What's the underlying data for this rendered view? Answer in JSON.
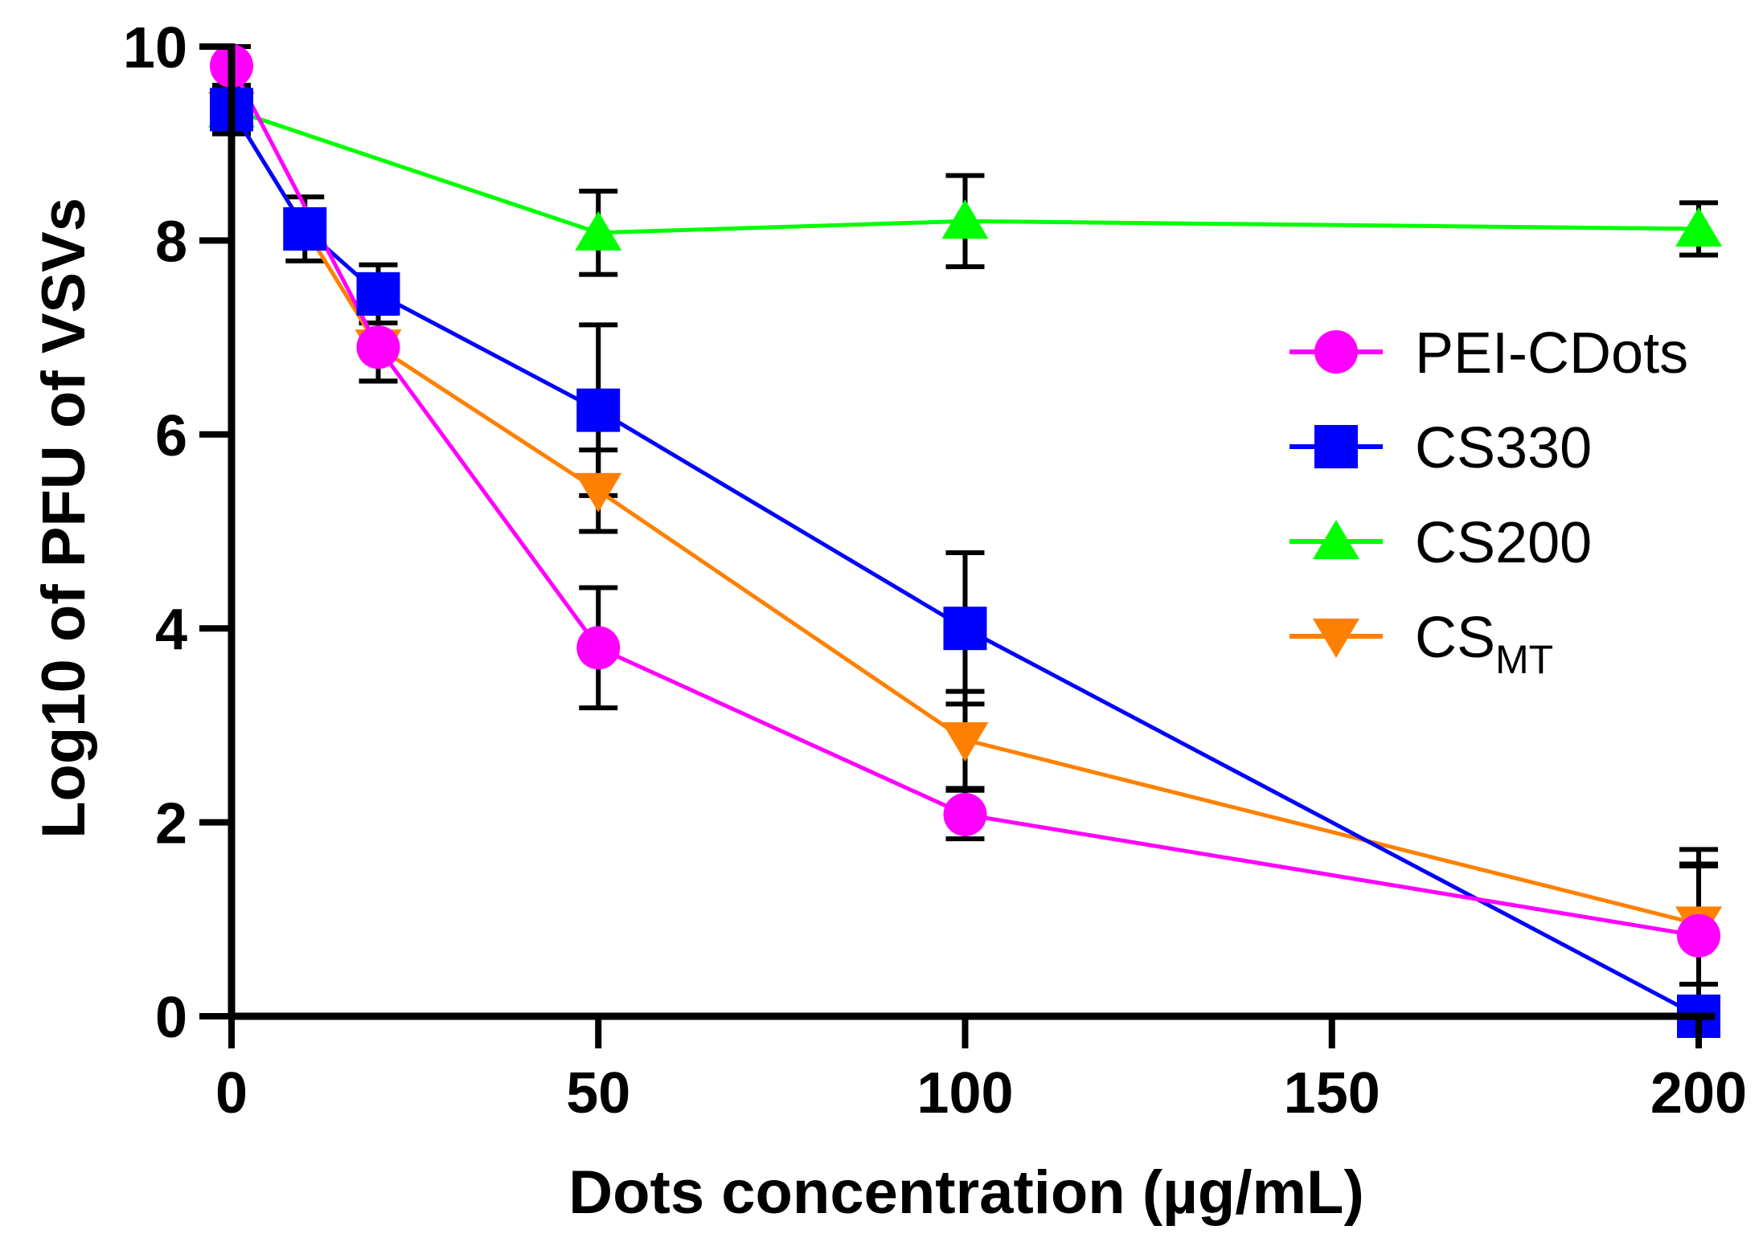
{
  "chart_data": {
    "type": "line",
    "title": "",
    "xlabel": "Dots concentration (µg/mL)",
    "ylabel": "Log10 of PFU of VSVs",
    "xlim": [
      0,
      200
    ],
    "ylim": [
      0,
      10
    ],
    "xticks": [
      0,
      50,
      100,
      150,
      200
    ],
    "yticks": [
      0,
      2,
      4,
      6,
      8,
      10
    ],
    "xtick_labels": [
      "0",
      "50",
      "100",
      "150",
      "200"
    ],
    "ytick_labels": [
      "0",
      "2",
      "4",
      "6",
      "8",
      "10"
    ],
    "legend_position": "right",
    "series": [
      {
        "name": "PEI-CDots",
        "label_main": "PEI-CDots",
        "label_sub": "",
        "color": "#ff00ff",
        "marker": "circle",
        "x": [
          0,
          20,
          50,
          100,
          200
        ],
        "y": [
          9.8,
          6.9,
          3.8,
          2.08,
          0.83
        ],
        "err": [
          0.2,
          0.35,
          0.62,
          0.25,
          0.72
        ]
      },
      {
        "name": "CS330",
        "label_main": "CS330",
        "label_sub": "",
        "color": "#0000ff",
        "marker": "square",
        "x": [
          0,
          10,
          20,
          50,
          100,
          200
        ],
        "y": [
          9.35,
          8.12,
          7.45,
          6.25,
          4.0,
          0.0
        ],
        "err": [
          0.25,
          0.33,
          0.3,
          0.88,
          0.78,
          1.72
        ]
      },
      {
        "name": "CS200",
        "label_main": "CS200",
        "label_sub": "",
        "color": "#00ff00",
        "marker": "triangle-up",
        "x": [
          0,
          50,
          100,
          200
        ],
        "y": [
          9.35,
          8.08,
          8.2,
          8.12
        ],
        "err": [
          0.2,
          0.43,
          0.47,
          0.27
        ]
      },
      {
        "name": "CS_MT",
        "label_main": "CS",
        "label_sub": "MT",
        "color": "#ff8000",
        "marker": "triangle-down",
        "x": [
          0,
          20,
          50,
          100,
          200
        ],
        "y": [
          9.35,
          6.9,
          5.42,
          2.85,
          0.95
        ],
        "err": [
          0.2,
          0.35,
          0.42,
          0.5,
          0.62
        ]
      }
    ]
  }
}
